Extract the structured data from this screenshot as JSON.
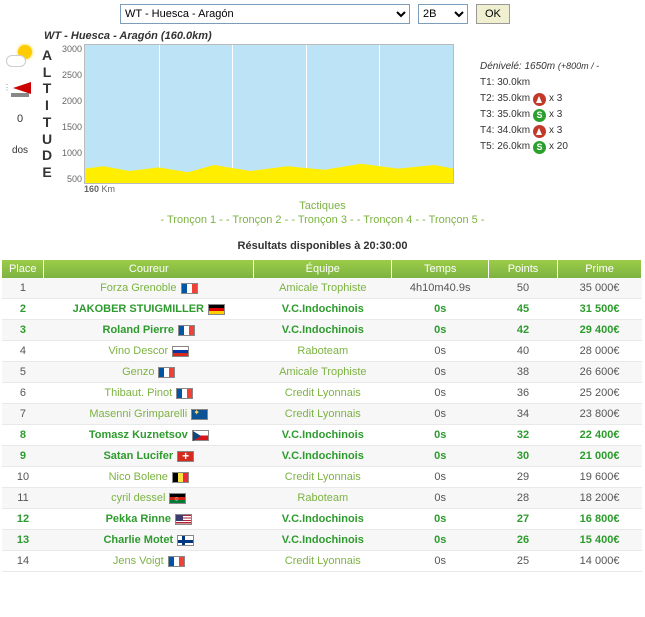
{
  "top": {
    "race_select": "WT - Huesca - Aragón",
    "cat_select": "2B",
    "ok": "OK"
  },
  "profile": {
    "title": "WT - Huesca - Aragón (160.0km)",
    "alt_label": "ALTITUDE",
    "y_ticks": [
      "3000",
      "2500",
      "2000",
      "1500",
      "1000",
      "500"
    ],
    "km_label": "Km",
    "total_km": "160",
    "chart": {
      "bg": "#bde3f6",
      "terrain_color": "#ffee00",
      "border": "#bbbbbb"
    }
  },
  "left": {
    "zero": "0",
    "dos": "dos"
  },
  "info": {
    "denivele": "Dénivelé: 1650m",
    "denivele_plus": "(+800m / -",
    "rows": [
      {
        "label": "T1: 30.0km",
        "icon": null,
        "mult": ""
      },
      {
        "label": "T2: 35.0km",
        "icon": "m",
        "mult": "x 3"
      },
      {
        "label": "T3: 35.0km",
        "icon": "s",
        "mult": "x 3"
      },
      {
        "label": "T4: 34.0km",
        "icon": "m",
        "mult": "x 3"
      },
      {
        "label": "T5: 26.0km",
        "icon": "s",
        "mult": "x 20"
      }
    ]
  },
  "tactiques": "Tactiques",
  "troncons": [
    "- Tronçon 1 -",
    "- Tronçon 2 -",
    "- Tronçon 3 -",
    "- Tronçon 4 -",
    "- Tronçon 5 -"
  ],
  "results_line": "Résultats disponibles à 20:30:00",
  "table": {
    "headers": [
      "Place",
      "Coureur",
      "Équipe",
      "Temps",
      "Points",
      "Prime"
    ],
    "rows": [
      {
        "place": "1",
        "name": "Forza Grenoble",
        "flag": "fr",
        "team": "Amicale Trophiste",
        "temps": "4h10m40.9s",
        "pts": "50",
        "prime": "35 000€",
        "hl": false
      },
      {
        "place": "2",
        "name": "JAKOBER STUIGMILLER",
        "flag": "de",
        "team": "V.C.Indochinois",
        "temps": "0s",
        "pts": "45",
        "prime": "31 500€",
        "hl": true
      },
      {
        "place": "3",
        "name": "Roland Pierre",
        "flag": "fr",
        "team": "V.C.Indochinois",
        "temps": "0s",
        "pts": "42",
        "prime": "29 400€",
        "hl": true
      },
      {
        "place": "4",
        "name": "Vino Descor",
        "flag": "ru",
        "team": "Raboteam",
        "temps": "0s",
        "pts": "40",
        "prime": "28 000€",
        "hl": false
      },
      {
        "place": "5",
        "name": "Genzo",
        "flag": "fr",
        "team": "Amicale Trophiste",
        "temps": "0s",
        "pts": "38",
        "prime": "26 600€",
        "hl": false
      },
      {
        "place": "6",
        "name": "Thibaut. Pinot",
        "flag": "fr",
        "team": "Credit Lyonnais",
        "temps": "0s",
        "pts": "36",
        "prime": "25 200€",
        "hl": false
      },
      {
        "place": "7",
        "name": "Masenni Grimparelli",
        "flag": "jj",
        "team": "Credit Lyonnais",
        "temps": "0s",
        "pts": "34",
        "prime": "23 800€",
        "hl": false
      },
      {
        "place": "8",
        "name": "Tomasz Kuznetsov",
        "flag": "cz",
        "team": "V.C.Indochinois",
        "temps": "0s",
        "pts": "32",
        "prime": "22 400€",
        "hl": true
      },
      {
        "place": "9",
        "name": "Satan Lucifer",
        "flag": "ch",
        "team": "V.C.Indochinois",
        "temps": "0s",
        "pts": "30",
        "prime": "21 000€",
        "hl": true
      },
      {
        "place": "10",
        "name": "Nico Bolene",
        "flag": "be",
        "team": "Credit Lyonnais",
        "temps": "0s",
        "pts": "29",
        "prime": "19 600€",
        "hl": false
      },
      {
        "place": "11",
        "name": "cyril dessel",
        "flag": "af",
        "team": "Raboteam",
        "temps": "0s",
        "pts": "28",
        "prime": "18 200€",
        "hl": false
      },
      {
        "place": "12",
        "name": "Pekka Rinne",
        "flag": "us",
        "team": "V.C.Indochinois",
        "temps": "0s",
        "pts": "27",
        "prime": "16 800€",
        "hl": true
      },
      {
        "place": "13",
        "name": "Charlie Motet",
        "flag": "fi",
        "team": "V.C.Indochinois",
        "temps": "0s",
        "pts": "26",
        "prime": "15 400€",
        "hl": true
      },
      {
        "place": "14",
        "name": "Jens Voigt",
        "flag": "fr",
        "team": "Credit Lyonnais",
        "temps": "0s",
        "pts": "25",
        "prime": "14 000€",
        "hl": false
      }
    ]
  }
}
